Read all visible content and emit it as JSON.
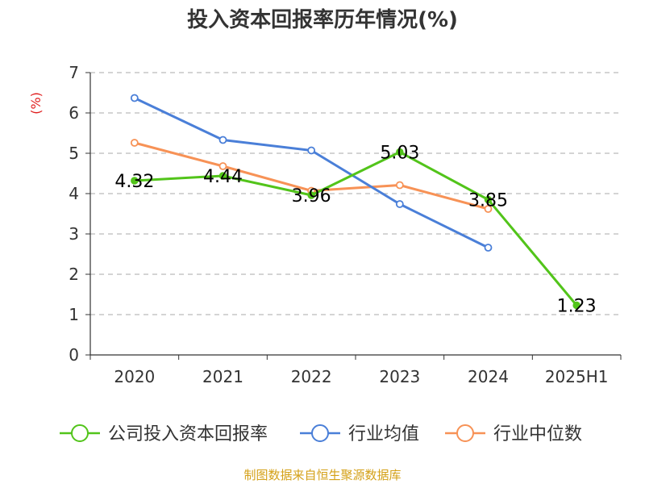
{
  "title": "投入资本回报率历年情况(%)",
  "source": "制图数据来自恒生聚源数据库",
  "chart_data": {
    "type": "line",
    "title": "投入资本回报率历年情况(%)",
    "ylabel": "(%)",
    "xlabel": "",
    "categories": [
      "2020",
      "2021",
      "2022",
      "2023",
      "2024",
      "2025H1"
    ],
    "ylim": [
      0,
      7
    ],
    "yticks": [
      "0",
      "1",
      "2",
      "3",
      "4",
      "5",
      "6",
      "7"
    ],
    "grid": "horizontal dashed",
    "legend_position": "bottom",
    "series": [
      {
        "name": "公司投入资本回报率",
        "color": "#52c41a",
        "values": [
          4.32,
          4.44,
          3.96,
          5.03,
          3.85,
          1.23
        ],
        "labels": [
          "4.32",
          "4.44",
          "3.96",
          "5.03",
          "3.85",
          "1.23"
        ]
      },
      {
        "name": "行业均值",
        "color": "#4a7fd8",
        "values": [
          6.37,
          5.33,
          5.07,
          3.74,
          2.66,
          null
        ]
      },
      {
        "name": "行业中位数",
        "color": "#f79256",
        "values": [
          5.26,
          4.68,
          4.07,
          4.21,
          3.62,
          null
        ]
      }
    ]
  }
}
